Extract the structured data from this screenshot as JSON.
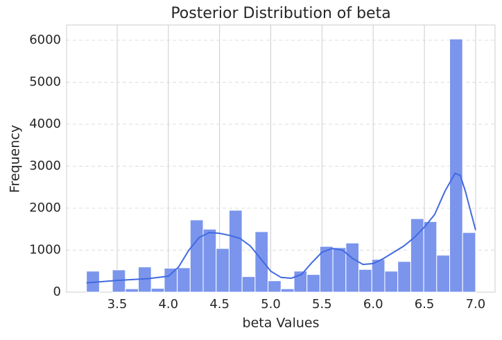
{
  "chart_data": {
    "type": "histogram",
    "title": "Posterior Distribution of beta",
    "x_label": "beta Values",
    "y_label": "Frequency",
    "bins": [
      3.2,
      3.3267,
      3.4533,
      3.58,
      3.7067,
      3.8333,
      3.96,
      4.0867,
      4.2133,
      4.34,
      4.4667,
      4.5933,
      4.72,
      4.8467,
      4.9733,
      5.1,
      5.2267,
      5.3533,
      5.48,
      5.6067,
      5.7333,
      5.86,
      5.9867,
      6.1133,
      6.24,
      6.3667,
      6.4933,
      6.62,
      6.7467,
      6.8733,
      7.0
    ],
    "values": [
      500,
      0,
      530,
      80,
      600,
      90,
      570,
      580,
      1720,
      1500,
      1040,
      1950,
      370,
      1440,
      270,
      80,
      500,
      420,
      1090,
      1060,
      1170,
      540,
      780,
      500,
      730,
      1750,
      1680,
      880,
      6030,
      1420
    ],
    "color": "#7b95ec",
    "kde": {
      "color": "#4169e1",
      "x": [
        3.2,
        3.5,
        3.8,
        4.0,
        4.1,
        4.2,
        4.3,
        4.4,
        4.5,
        4.6,
        4.7,
        4.8,
        4.9,
        5.0,
        5.1,
        5.2,
        5.3,
        5.4,
        5.5,
        5.6,
        5.7,
        5.8,
        5.9,
        6.0,
        6.1,
        6.2,
        6.3,
        6.4,
        6.5,
        6.6,
        6.7,
        6.8,
        6.85,
        6.9,
        7.0
      ],
      "values": [
        220,
        280,
        320,
        380,
        600,
        1000,
        1300,
        1420,
        1400,
        1350,
        1280,
        1100,
        800,
        500,
        350,
        330,
        420,
        700,
        950,
        1040,
        1000,
        800,
        660,
        680,
        800,
        950,
        1100,
        1300,
        1550,
        1850,
        2400,
        2830,
        2780,
        2400,
        1480
      ]
    },
    "xlim": [
      3.006,
      7.19
    ],
    "ylim": [
      0,
      6364
    ],
    "xticks": [
      3.5,
      {
        "value": 4,
        "label": "4.0"
      },
      4.5,
      {
        "value": 5,
        "label": "5.0"
      },
      5.5,
      {
        "value": 6,
        "label": "6.0"
      },
      6.5,
      {
        "value": 7,
        "label": "7.0"
      }
    ],
    "yticks": [
      0,
      1000,
      2000,
      3000,
      4000,
      5000,
      6000
    ],
    "grid": true
  }
}
